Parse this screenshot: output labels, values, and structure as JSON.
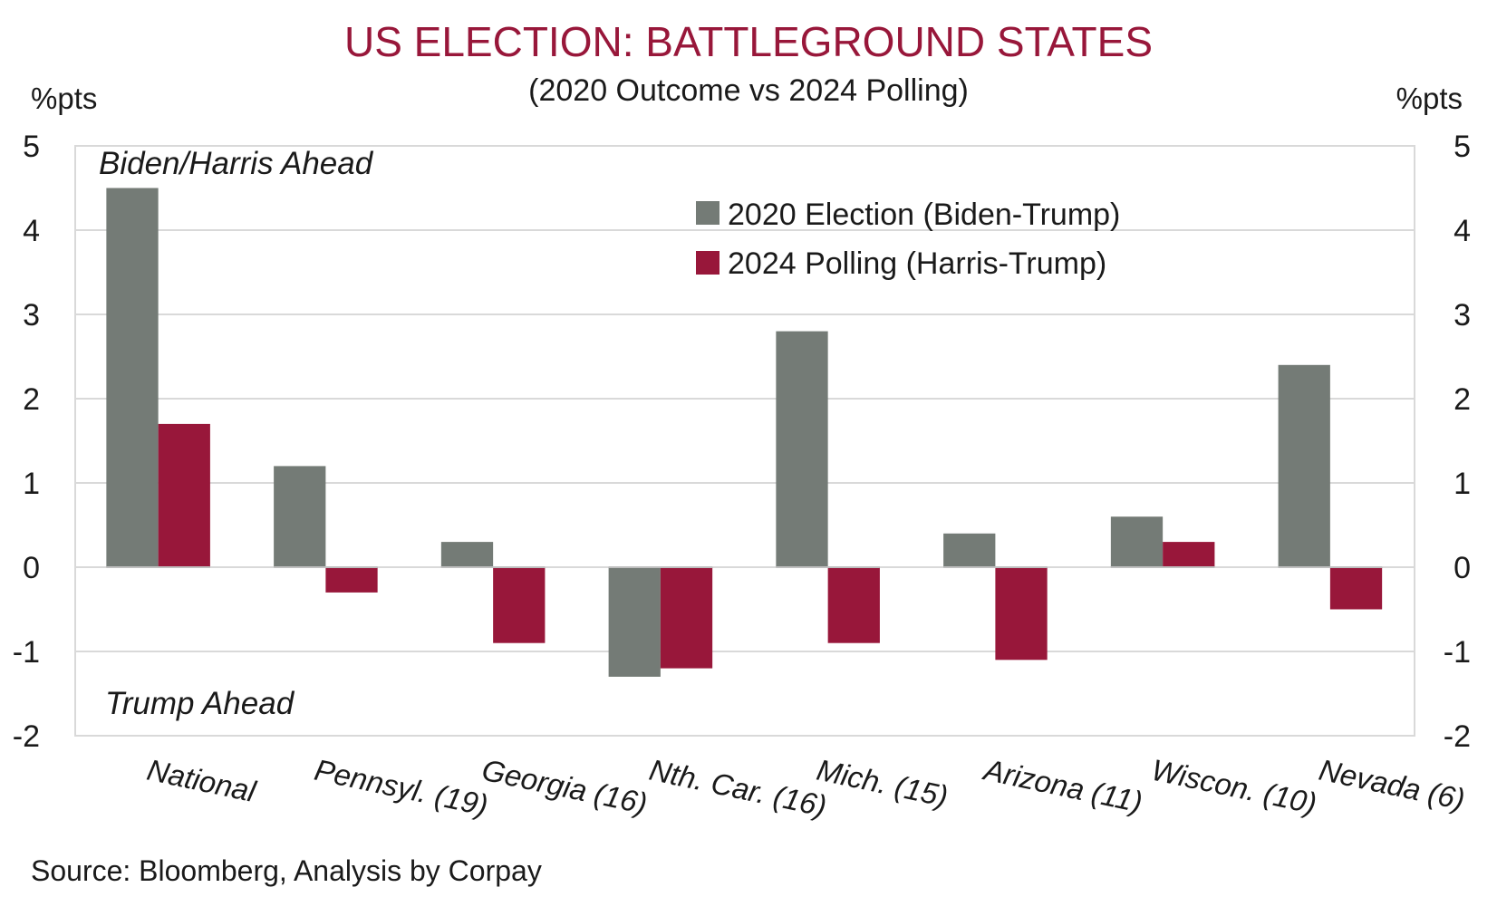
{
  "chart_data": {
    "type": "bar",
    "title": "US ELECTION: BATTLEGROUND STATES",
    "subtitle": "(2020 Outcome vs 2024 Polling)",
    "ylabel_left": "%pts",
    "ylabel_right": "%pts",
    "ylim": [
      -2,
      5
    ],
    "yticks": [
      5,
      4,
      3,
      2,
      1,
      0,
      -1,
      -2
    ],
    "categories": [
      "National",
      "Pennsyl. (19)",
      "Georgia (16)",
      "Nth. Car. (16)",
      "Mich. (15)",
      "Arizona (11)",
      "Wiscon. (10)",
      "Nevada (6)"
    ],
    "series": [
      {
        "name": "2020 Election (Biden-Trump)",
        "color": "#747b76",
        "values": [
          4.5,
          1.2,
          0.3,
          -1.3,
          2.8,
          0.4,
          0.6,
          2.4
        ]
      },
      {
        "name": "2024 Polling (Harris-Trump)",
        "color": "#98173a",
        "values": [
          1.7,
          -0.3,
          -0.9,
          -1.2,
          -0.9,
          -1.1,
          0.3,
          -0.5
        ]
      }
    ],
    "annotations": {
      "top": "Biden/Harris Ahead",
      "bottom": "Trump Ahead"
    },
    "grid": true,
    "legend_position": "top-right",
    "source": "Source: Bloomberg, Analysis by Corpay"
  }
}
